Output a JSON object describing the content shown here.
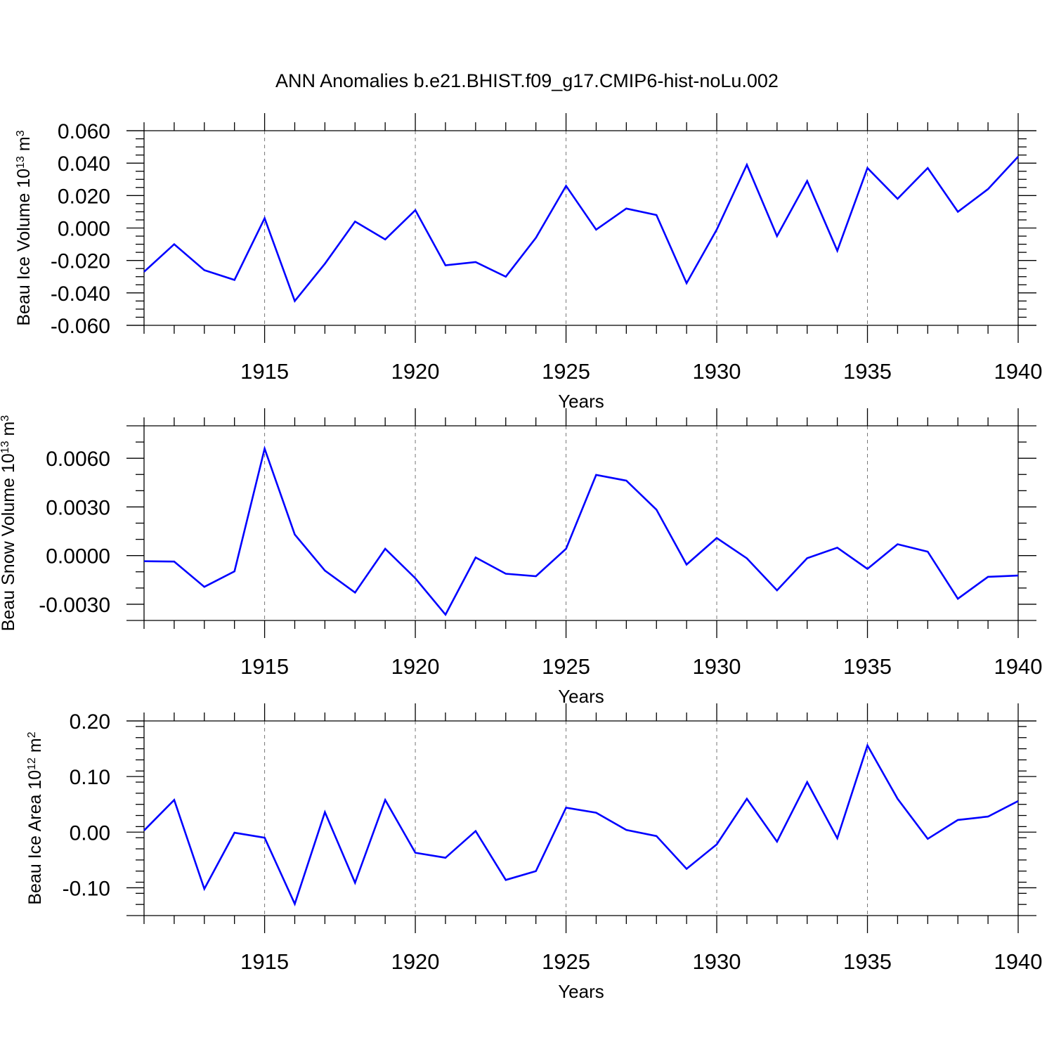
{
  "title": "ANN Anomalies b.e21.BHIST.f09_g17.CMIP6-hist-noLu.002",
  "colors": {
    "line": "#0000ff",
    "axis": "#000000",
    "grid": "#777777"
  },
  "chart_data": [
    {
      "type": "line",
      "xlabel": "Years",
      "ylabel": {
        "main": "Beau Ice Volume 10",
        "exp": "13",
        "unit": " m",
        "unit_exp": "3"
      },
      "xlim": [
        1911,
        1940
      ],
      "ylim": [
        -0.06,
        0.06
      ],
      "x_ticks": [
        1915,
        1920,
        1925,
        1930,
        1935,
        1940
      ],
      "y_ticks": [
        -0.06,
        -0.04,
        -0.02,
        0.0,
        0.02,
        0.04,
        0.06
      ],
      "y_tick_labels": [
        "-0.060",
        "-0.040",
        "-0.020",
        "0.000",
        "0.020",
        "0.040",
        "0.060"
      ],
      "y_minor_step": 0.005,
      "grid": "vertical dashed at major x ticks",
      "x": [
        1911,
        1912,
        1913,
        1914,
        1915,
        1916,
        1917,
        1918,
        1919,
        1920,
        1921,
        1922,
        1923,
        1924,
        1925,
        1926,
        1927,
        1928,
        1929,
        1930,
        1931,
        1932,
        1933,
        1934,
        1935,
        1936,
        1937,
        1938,
        1939,
        1940
      ],
      "values": [
        -0.027,
        -0.01,
        -0.026,
        -0.032,
        0.006,
        -0.045,
        -0.022,
        0.004,
        -0.007,
        0.011,
        -0.023,
        -0.021,
        -0.03,
        -0.006,
        0.026,
        -0.001,
        0.012,
        0.008,
        -0.034,
        -0.001,
        0.039,
        -0.005,
        0.029,
        -0.014,
        0.037,
        0.018,
        0.037,
        0.01,
        0.024,
        0.044
      ]
    },
    {
      "type": "line",
      "xlabel": "Years",
      "ylabel": {
        "main": "Beau Snow Volume 10",
        "exp": "13",
        "unit": " m",
        "unit_exp": "3"
      },
      "xlim": [
        1911,
        1940
      ],
      "ylim": [
        -0.004,
        0.008
      ],
      "x_ticks": [
        1915,
        1920,
        1925,
        1930,
        1935,
        1940
      ],
      "y_ticks": [
        -0.003,
        0.0,
        0.003,
        0.006
      ],
      "y_tick_labels": [
        "-0.0030",
        "0.0000",
        "0.0030",
        "0.0060"
      ],
      "y_minor_step": 0.001,
      "grid": "vertical dashed at major x ticks",
      "x": [
        1911,
        1912,
        1913,
        1914,
        1915,
        1916,
        1917,
        1918,
        1919,
        1920,
        1921,
        1922,
        1923,
        1924,
        1925,
        1926,
        1927,
        1928,
        1929,
        1930,
        1931,
        1932,
        1933,
        1934,
        1935,
        1936,
        1937,
        1938,
        1939,
        1940
      ],
      "values": [
        -0.00035,
        -0.00037,
        -0.00193,
        -0.00097,
        0.00659,
        0.0013,
        -0.00093,
        -0.00228,
        0.00042,
        -0.0014,
        -0.00364,
        -0.00012,
        -0.00112,
        -0.00127,
        0.00042,
        0.00497,
        0.00462,
        0.00283,
        -0.00055,
        0.00108,
        -0.00017,
        -0.00214,
        -0.00016,
        0.00049,
        -0.00082,
        0.0007,
        0.00024,
        -0.00266,
        -0.00131,
        -0.00123
      ]
    },
    {
      "type": "line",
      "xlabel": "Years",
      "ylabel": {
        "main": "Beau Ice Area 10",
        "exp": "12",
        "unit": " m",
        "unit_exp": "2"
      },
      "xlim": [
        1911,
        1940
      ],
      "ylim": [
        -0.15,
        0.2
      ],
      "x_ticks": [
        1915,
        1920,
        1925,
        1930,
        1935,
        1940
      ],
      "y_ticks": [
        -0.1,
        0.0,
        0.1,
        0.2
      ],
      "y_tick_labels": [
        "-0.10",
        "0.00",
        "0.10",
        "0.20"
      ],
      "y_minor_step": 0.02,
      "grid": "vertical dashed at major x ticks",
      "x": [
        1911,
        1912,
        1913,
        1914,
        1915,
        1916,
        1917,
        1918,
        1919,
        1920,
        1921,
        1922,
        1923,
        1924,
        1925,
        1926,
        1927,
        1928,
        1929,
        1930,
        1931,
        1932,
        1933,
        1934,
        1935,
        1936,
        1937,
        1938,
        1939,
        1940
      ],
      "values": [
        0.003,
        0.058,
        -0.102,
        -0.001,
        -0.01,
        -0.129,
        0.036,
        -0.091,
        0.058,
        -0.037,
        -0.046,
        0.002,
        -0.086,
        -0.07,
        0.044,
        0.035,
        0.004,
        -0.007,
        -0.066,
        -0.022,
        0.06,
        -0.017,
        0.09,
        -0.011,
        0.156,
        0.06,
        -0.012,
        0.022,
        0.028,
        0.056
      ]
    }
  ]
}
